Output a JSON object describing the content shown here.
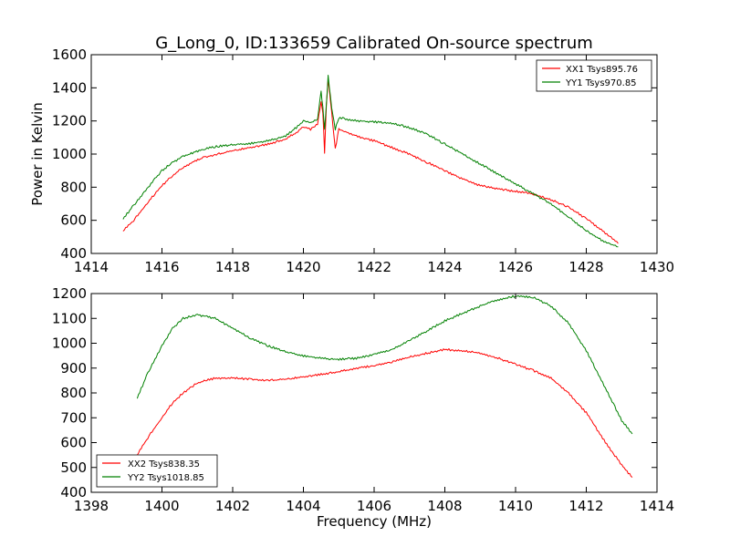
{
  "chart_data": [
    {
      "type": "line",
      "title": "G_Long_0, ID:133659 Calibrated On-source spectrum",
      "xlabel": "",
      "ylabel": "Power in Kelvin",
      "xlim": [
        1414,
        1430
      ],
      "ylim": [
        400,
        1600
      ],
      "xticks": [
        "1414",
        "1416",
        "1418",
        "1420",
        "1422",
        "1424",
        "1426",
        "1428",
        "1430"
      ],
      "yticks": [
        "400",
        "600",
        "800",
        "1000",
        "1200",
        "1400",
        "1600"
      ],
      "legend": "top-right",
      "series": [
        {
          "name": "XX1 Tsys895.76",
          "color": "#ff0000",
          "x": [
            1414.9,
            1415.2,
            1415.5,
            1415.8,
            1416.0,
            1416.3,
            1416.6,
            1416.9,
            1417.2,
            1417.5,
            1418.0,
            1418.5,
            1419.0,
            1419.5,
            1419.8,
            1420.0,
            1420.2,
            1420.4,
            1420.5,
            1420.55,
            1420.6,
            1420.65,
            1420.7,
            1420.8,
            1420.9,
            1421.0,
            1421.5,
            1422.0,
            1422.5,
            1423.0,
            1423.5,
            1424.0,
            1424.5,
            1425.0,
            1425.5,
            1426.0,
            1426.5,
            1427.0,
            1427.5,
            1428.0,
            1428.5,
            1428.9
          ],
          "y": [
            535,
            600,
            680,
            760,
            810,
            870,
            920,
            955,
            980,
            995,
            1020,
            1040,
            1060,
            1090,
            1130,
            1165,
            1150,
            1180,
            1320,
            1250,
            1010,
            1300,
            1450,
            1250,
            1030,
            1150,
            1110,
            1080,
            1040,
            1000,
            950,
            900,
            850,
            810,
            790,
            775,
            760,
            725,
            680,
            610,
            530,
            460
          ]
        },
        {
          "name": "YY1 Tsys970.85",
          "color": "#008000",
          "x": [
            1414.9,
            1415.2,
            1415.5,
            1415.8,
            1416.0,
            1416.3,
            1416.6,
            1416.9,
            1417.2,
            1417.5,
            1418.0,
            1418.5,
            1419.0,
            1419.5,
            1419.8,
            1420.0,
            1420.2,
            1420.4,
            1420.5,
            1420.55,
            1420.6,
            1420.65,
            1420.7,
            1420.8,
            1420.9,
            1421.0,
            1421.5,
            1422.0,
            1422.5,
            1423.0,
            1423.5,
            1424.0,
            1424.5,
            1425.0,
            1425.5,
            1426.0,
            1426.5,
            1427.0,
            1427.5,
            1428.0,
            1428.5,
            1428.9
          ],
          "y": [
            610,
            690,
            770,
            850,
            900,
            950,
            985,
            1010,
            1030,
            1045,
            1055,
            1065,
            1080,
            1110,
            1160,
            1200,
            1190,
            1210,
            1380,
            1280,
            1150,
            1300,
            1475,
            1280,
            1150,
            1220,
            1200,
            1195,
            1185,
            1160,
            1120,
            1060,
            1000,
            940,
            880,
            820,
            760,
            700,
            620,
            540,
            470,
            440
          ]
        }
      ]
    },
    {
      "type": "line",
      "title": "",
      "xlabel": "Frequency (MHz)",
      "ylabel": "",
      "xlim": [
        1398,
        1414
      ],
      "ylim": [
        400,
        1200
      ],
      "xticks": [
        "1398",
        "1400",
        "1402",
        "1404",
        "1406",
        "1408",
        "1410",
        "1412",
        "1414"
      ],
      "yticks": [
        "400",
        "500",
        "600",
        "700",
        "800",
        "900",
        "1000",
        "1100",
        "1200"
      ],
      "legend": "bottom-left",
      "series": [
        {
          "name": "XX2 Tsys838.35",
          "color": "#ff0000",
          "x": [
            1399.3,
            1399.6,
            1400.0,
            1400.3,
            1400.6,
            1401.0,
            1401.5,
            1402.0,
            1402.5,
            1403.0,
            1403.5,
            1404.0,
            1404.5,
            1405.0,
            1405.5,
            1406.0,
            1406.5,
            1407.0,
            1407.5,
            1408.0,
            1408.5,
            1409.0,
            1409.5,
            1410.0,
            1410.5,
            1411.0,
            1411.5,
            1412.0,
            1412.5,
            1413.0,
            1413.3
          ],
          "y": [
            550,
            620,
            700,
            760,
            800,
            840,
            860,
            860,
            855,
            850,
            855,
            865,
            875,
            885,
            900,
            910,
            925,
            945,
            960,
            975,
            970,
            960,
            940,
            915,
            890,
            860,
            800,
            720,
            610,
            510,
            460
          ]
        },
        {
          "name": "YY2 Tsys1018.85",
          "color": "#008000",
          "x": [
            1399.3,
            1399.6,
            1400.0,
            1400.3,
            1400.6,
            1401.0,
            1401.5,
            1402.0,
            1402.5,
            1403.0,
            1403.5,
            1404.0,
            1404.5,
            1405.0,
            1405.5,
            1406.0,
            1406.5,
            1407.0,
            1407.5,
            1408.0,
            1408.5,
            1409.0,
            1409.5,
            1410.0,
            1410.5,
            1411.0,
            1411.5,
            1412.0,
            1412.5,
            1413.0,
            1413.3
          ],
          "y": [
            780,
            880,
            990,
            1060,
            1100,
            1115,
            1100,
            1060,
            1020,
            990,
            965,
            950,
            940,
            935,
            940,
            955,
            975,
            1010,
            1050,
            1090,
            1120,
            1150,
            1175,
            1190,
            1185,
            1150,
            1080,
            970,
            830,
            690,
            635
          ]
        }
      ]
    }
  ]
}
